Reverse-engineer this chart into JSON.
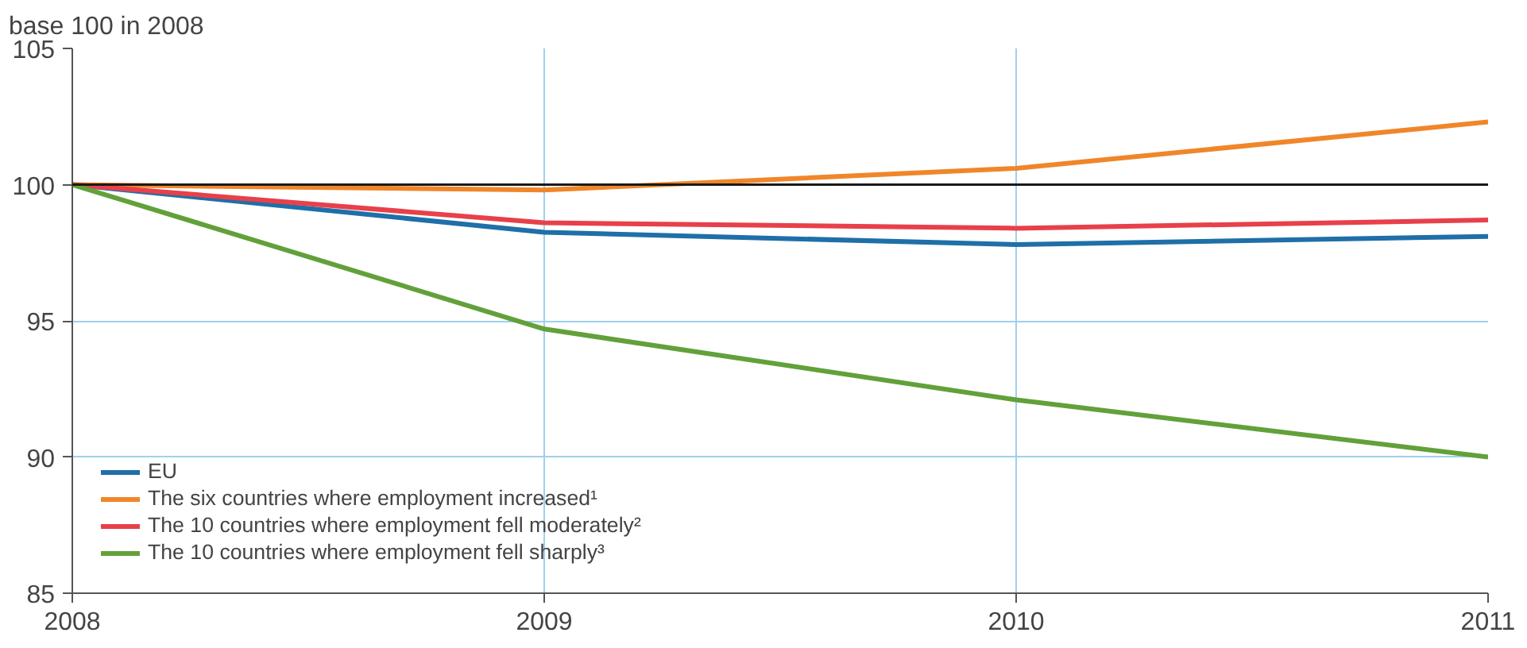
{
  "chart_data": {
    "type": "line",
    "ylabel": "base 100 in 2008",
    "x": [
      2008,
      2009,
      2010,
      2011
    ],
    "xlim": [
      2008,
      2011
    ],
    "xticks": [
      2008,
      2009,
      2010,
      2011
    ],
    "ylim": [
      85,
      105
    ],
    "yticks": [
      85,
      90,
      95,
      100,
      105
    ],
    "grid": true,
    "legend": "bottom left",
    "marker": "none",
    "line_style": "solid",
    "ref_lines": [
      {
        "axis": "y",
        "value": 100,
        "color": "#1a1a1a"
      }
    ],
    "series": [
      {
        "name": "EU",
        "color": "#1f6fa8",
        "values": [
          100,
          98.25,
          97.8,
          98.1
        ]
      },
      {
        "name": "The six countries where employment increased¹",
        "color": "#f0862a",
        "values": [
          100,
          99.8,
          100.6,
          102.3
        ]
      },
      {
        "name": "The 10 countries where employment fell moderately²",
        "color": "#e8404a",
        "values": [
          100,
          98.6,
          98.4,
          98.7
        ]
      },
      {
        "name": "The 10 countries where employment fell sharply³",
        "color": "#62a13a",
        "values": [
          100,
          94.7,
          92.1,
          90.0
        ]
      }
    ]
  }
}
